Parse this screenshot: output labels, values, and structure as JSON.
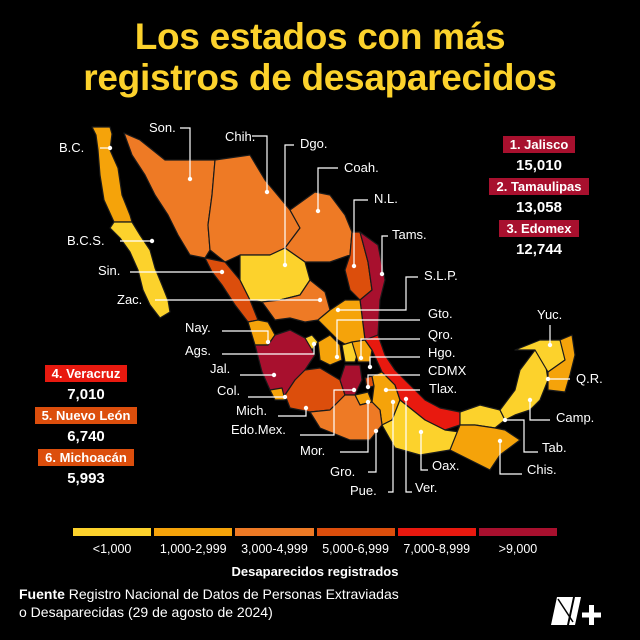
{
  "title": {
    "line1": "Los estados con más",
    "line2": "registros de desaparecidos"
  },
  "ranking_top": [
    {
      "label": "1. Jalisco",
      "value": "15,010",
      "color": "#a8102e"
    },
    {
      "label": "2. Tamaulipas",
      "value": "13,058",
      "color": "#a8102e"
    },
    {
      "label": "3. Edomex",
      "value": "12,744",
      "color": "#a8102e"
    }
  ],
  "ranking_left": [
    {
      "label": "4. Veracruz",
      "value": "7,010",
      "color": "#e8190f"
    },
    {
      "label": "5. Nuevo León",
      "value": "6,740",
      "color": "#dc4e0c"
    },
    {
      "label": "6. Michoacán",
      "value": "5,993",
      "color": "#dc4e0c"
    }
  ],
  "chart_data": {
    "type": "choropleth-map",
    "title": "Los estados con más registros de desaparecidos",
    "legend_title": "Desaparecidos registrados",
    "bins": [
      {
        "label": "<1,000",
        "color": "#fcd22c"
      },
      {
        "label": "1,000-2,999",
        "color": "#f5a30a"
      },
      {
        "label": "3,000-4,999",
        "color": "#ee7a25"
      },
      {
        "label": "5,000-6,999",
        "color": "#dc4e0c"
      },
      {
        "label": "7,000-8,999",
        "color": "#e8190f"
      },
      {
        "label": ">9,000",
        "color": "#a8102e"
      }
    ],
    "states": [
      {
        "name": "B.C.",
        "bin": 1
      },
      {
        "name": "B.C.S.",
        "bin": 0
      },
      {
        "name": "Son.",
        "bin": 2
      },
      {
        "name": "Chih.",
        "bin": 2
      },
      {
        "name": "Coah.",
        "bin": 2
      },
      {
        "name": "N.L.",
        "bin": 3,
        "value": 6740
      },
      {
        "name": "Tams.",
        "bin": 5,
        "value": 13058
      },
      {
        "name": "Sin.",
        "bin": 3
      },
      {
        "name": "Dgo.",
        "bin": 0
      },
      {
        "name": "Zac.",
        "bin": 2
      },
      {
        "name": "S.L.P.",
        "bin": 1
      },
      {
        "name": "Nay.",
        "bin": 1
      },
      {
        "name": "Ags.",
        "bin": 0
      },
      {
        "name": "Jal.",
        "bin": 5,
        "value": 15010
      },
      {
        "name": "Gto.",
        "bin": 1
      },
      {
        "name": "Qro.",
        "bin": 0
      },
      {
        "name": "Hgo.",
        "bin": 1
      },
      {
        "name": "Col.",
        "bin": 1
      },
      {
        "name": "Mich.",
        "bin": 3,
        "value": 5993
      },
      {
        "name": "Edo.Mex.",
        "bin": 5,
        "value": 12744
      },
      {
        "name": "CDMX",
        "bin": 3
      },
      {
        "name": "Mor.",
        "bin": 1
      },
      {
        "name": "Tlax.",
        "bin": 0
      },
      {
        "name": "Pue.",
        "bin": 1
      },
      {
        "name": "Gro.",
        "bin": 2
      },
      {
        "name": "Ver.",
        "bin": 4,
        "value": 7010
      },
      {
        "name": "Oax.",
        "bin": 0
      },
      {
        "name": "Tab.",
        "bin": 0
      },
      {
        "name": "Chis.",
        "bin": 1
      },
      {
        "name": "Camp.",
        "bin": 0
      },
      {
        "name": "Yuc.",
        "bin": 0
      },
      {
        "name": "Q.R.",
        "bin": 1
      }
    ]
  },
  "source": {
    "prefix": "Fuente",
    "line1": "Registro Nacional de Datos de Personas Extraviadas",
    "line2": "o Desaparecidas (29 de agosto de 2024)"
  },
  "logo": {
    "name": "N+ logo",
    "text": "N+"
  }
}
